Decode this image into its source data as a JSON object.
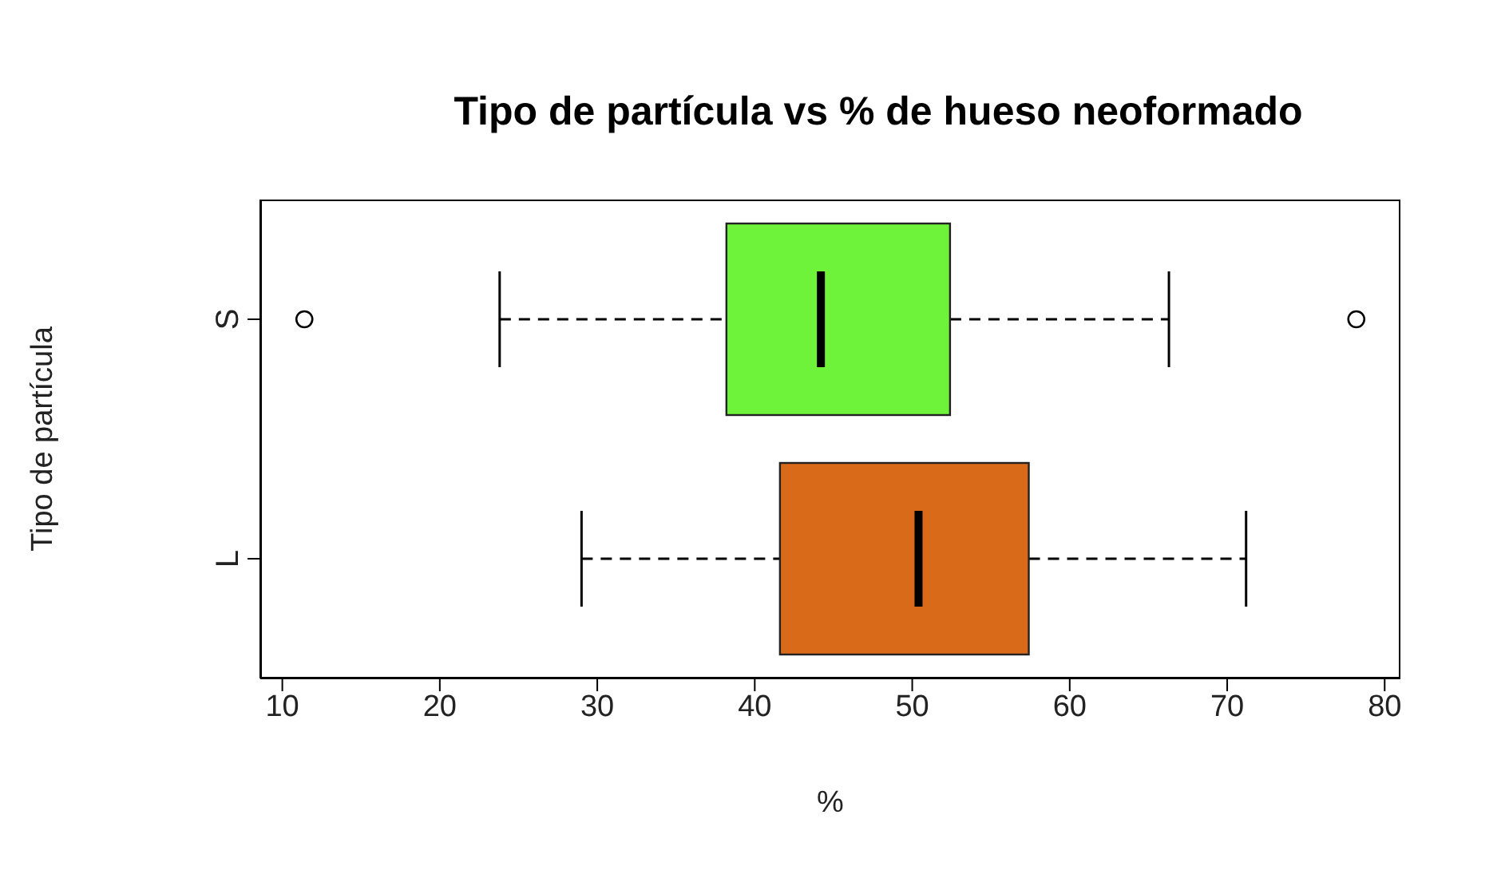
{
  "chart_data": {
    "type": "box",
    "title": "Tipo de partícula vs % de hueso neoformado",
    "xlabel": "%",
    "ylabel": "Tipo de partícula",
    "orientation": "horizontal",
    "categories": [
      "S",
      "L"
    ],
    "colors": [
      "#6ef23a",
      "#d96a1a"
    ],
    "boxes": [
      {
        "low": 23.8,
        "q1": 38.2,
        "median": 44.2,
        "q3": 52.4,
        "high": 66.3,
        "outliers": [
          11.4,
          78.2
        ]
      },
      {
        "low": 29.0,
        "q1": 41.6,
        "median": 50.4,
        "q3": 57.4,
        "high": 71.2
      }
    ],
    "xlim": [
      8.6,
      81
    ],
    "xticks": [
      10,
      20,
      30,
      40,
      50,
      60,
      70,
      80
    ]
  }
}
